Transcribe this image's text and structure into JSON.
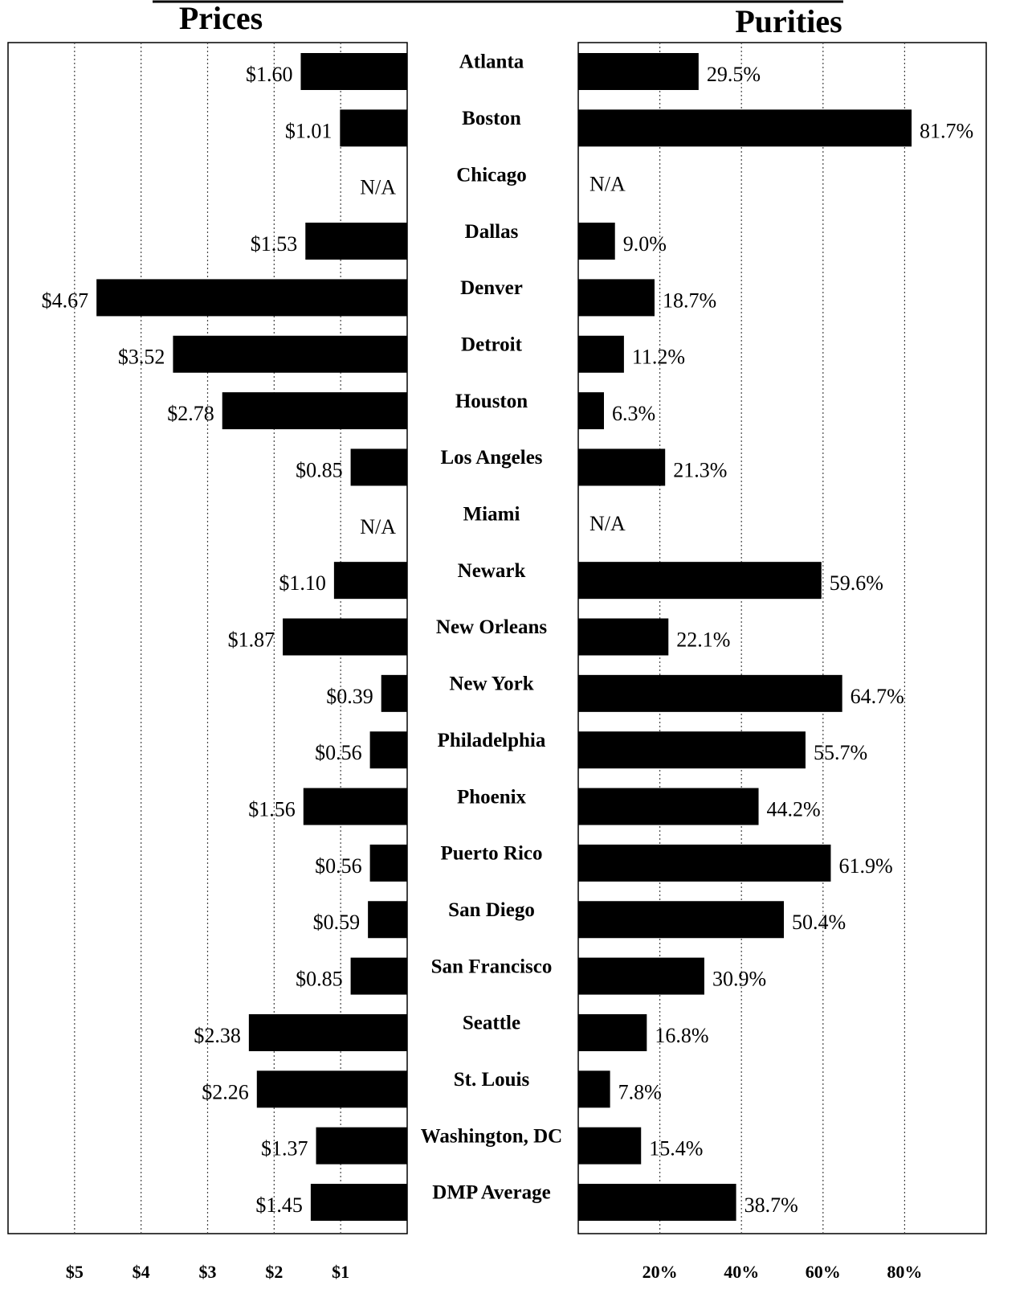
{
  "chart_data": [
    {
      "type": "barh",
      "title": "Prices",
      "categories": [
        "Atlanta",
        "Boston",
        "Chicago",
        "Dallas",
        "Denver",
        "Detroit",
        "Houston",
        "Los Angeles",
        "Miami",
        "Newark",
        "New Orleans",
        "New York",
        "Philadelphia",
        "Phoenix",
        "Puerto Rico",
        "San Diego",
        "San Francisco",
        "Seattle",
        "St. Louis",
        "Washington, DC",
        "DMP Average"
      ],
      "values": [
        1.6,
        1.01,
        null,
        1.53,
        4.67,
        3.52,
        2.78,
        0.85,
        null,
        1.1,
        1.87,
        0.39,
        0.56,
        1.56,
        0.56,
        0.59,
        0.85,
        2.38,
        2.26,
        1.37,
        1.45
      ],
      "value_labels": [
        "$1.60",
        "$1.01",
        "N/A",
        "$1.53",
        "$4.67",
        "$3.52",
        "$2.78",
        "$0.85",
        "N/A",
        "$1.10",
        "$1.87",
        "$0.39",
        "$0.56",
        "$1.56",
        "$0.56",
        "$0.59",
        "$0.85",
        "$2.38",
        "$2.26",
        "$1.37",
        "$1.45"
      ],
      "color": "#000000",
      "xlim": [
        6,
        0
      ],
      "xticks": [
        {
          "value": 5,
          "label": "$5"
        },
        {
          "value": 4,
          "label": "$4"
        },
        {
          "value": 3,
          "label": "$3"
        },
        {
          "value": 2,
          "label": "$2"
        },
        {
          "value": 1,
          "label": "$1"
        }
      ],
      "grid": true
    },
    {
      "type": "barh",
      "title": "Purities",
      "values": [
        29.5,
        81.7,
        null,
        9.0,
        18.7,
        11.2,
        6.3,
        21.3,
        null,
        59.6,
        22.1,
        64.7,
        55.7,
        44.2,
        61.9,
        50.4,
        30.9,
        16.8,
        7.8,
        15.4,
        38.7
      ],
      "value_labels": [
        "29.5%",
        "81.7%",
        "N/A",
        "9.0%",
        "18.7%",
        "11.2%",
        "6.3%",
        "21.3%",
        "N/A",
        "59.6%",
        "22.1%",
        "64.7%",
        "55.7%",
        "44.2%",
        "61.9%",
        "50.4%",
        "30.9%",
        "16.8%",
        "7.8%",
        "15.4%",
        "38.7%"
      ],
      "color": "#000000",
      "xlim": [
        0,
        100
      ],
      "xticks": [
        {
          "value": 20,
          "label": "20%"
        },
        {
          "value": 40,
          "label": "40%"
        },
        {
          "value": 60,
          "label": "60%"
        },
        {
          "value": 80,
          "label": "80%"
        }
      ],
      "grid": true
    }
  ]
}
